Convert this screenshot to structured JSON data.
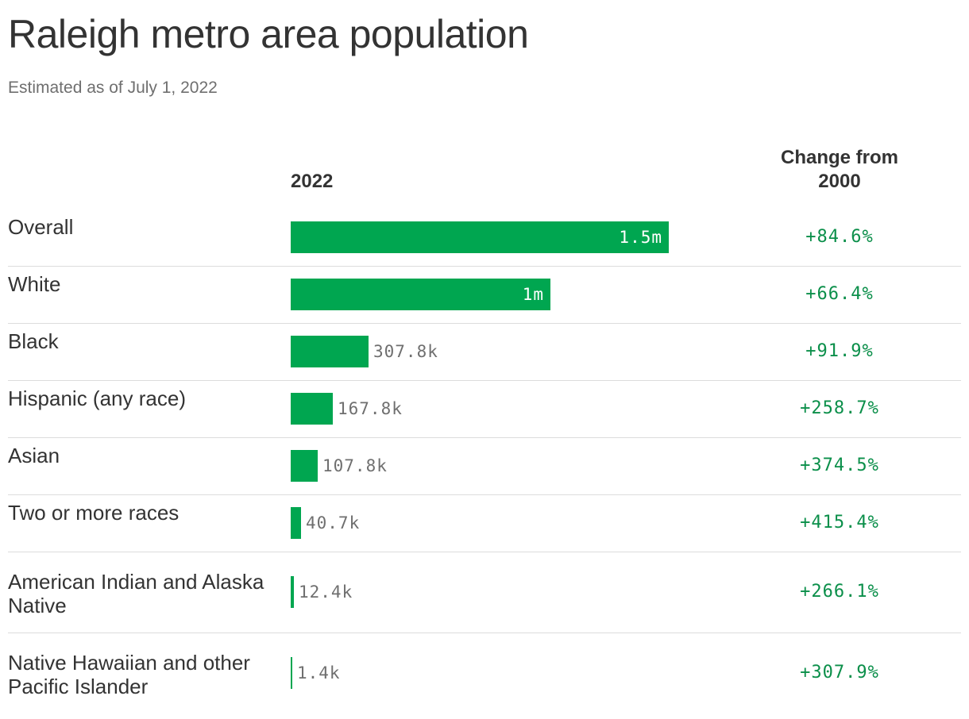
{
  "header": {
    "title": "Raleigh metro area population",
    "subtitle": "Estimated as of July 1, 2022"
  },
  "columns": {
    "year": "2022",
    "change": "Change from 2000"
  },
  "colors": {
    "bar": "#00a650",
    "change_text": "#0b8f4a"
  },
  "chart_data": {
    "type": "bar",
    "title": "Raleigh metro area population",
    "subtitle": "Estimated as of July 1, 2022",
    "categories": [
      "Overall",
      "White",
      "Black",
      "Hispanic (any race)",
      "Asian",
      "Two or more races",
      "American Indian and Alaska Native",
      "Native Hawaiian and other Pacific Islander"
    ],
    "values": [
      1500000,
      1030000,
      307800,
      167800,
      107800,
      40700,
      12400,
      1400
    ],
    "value_labels": [
      "1.5m",
      "1m",
      "307.8k",
      "167.8k",
      "107.8k",
      "40.7k",
      "12.4k",
      "1.4k"
    ],
    "change_from_2000": [
      "+84.6%",
      "+66.4%",
      "+91.9%",
      "+258.7%",
      "+374.5%",
      "+415.4%",
      "+266.1%",
      "+307.9%"
    ],
    "xlim": [
      0,
      1500000
    ]
  }
}
